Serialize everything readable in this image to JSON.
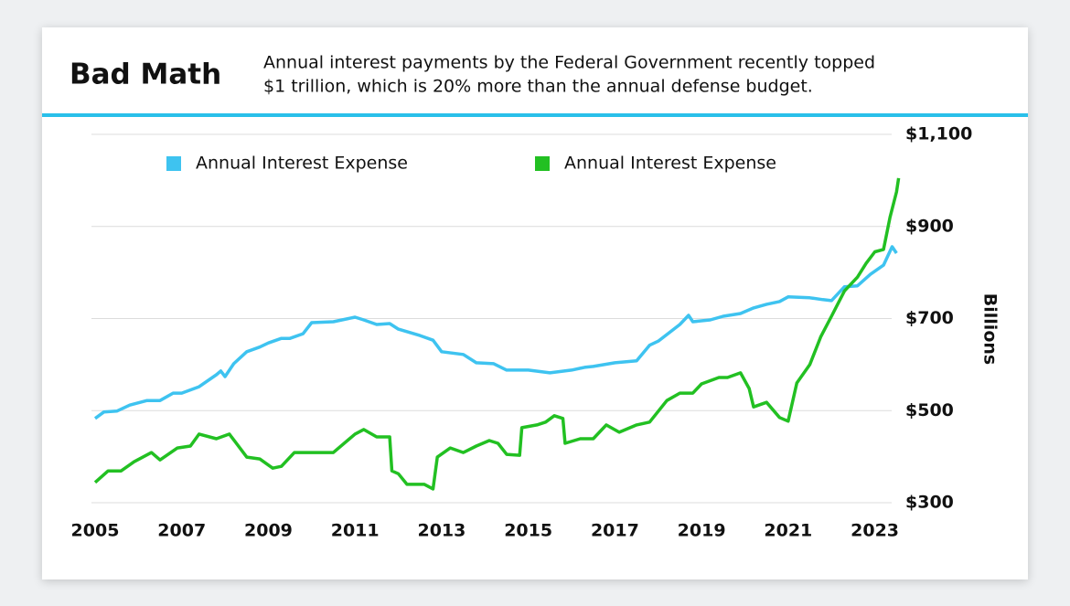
{
  "chart_data": {
    "type": "line",
    "title": "Bad Math",
    "subtitle": [
      "Annual interest payments by the Federal Government recently topped",
      "$1 trillion, which is 20% more than the annual defense budget."
    ],
    "y_label": "Billions",
    "xlim": [
      2005,
      2023.6
    ],
    "ylim": [
      300,
      1100
    ],
    "xticks": [
      2005,
      2007,
      2009,
      2011,
      2013,
      2015,
      2017,
      2019,
      2021,
      2023
    ],
    "yticks": [
      {
        "value": 300,
        "label": "$300"
      },
      {
        "value": 500,
        "label": "$500"
      },
      {
        "value": 700,
        "label": "$700"
      },
      {
        "value": 900,
        "label": "$900"
      },
      {
        "value": 1100,
        "label": "$1,100"
      }
    ],
    "grid": true,
    "series": [
      {
        "name": "Annual Interest Expense",
        "color": "#3ec3f0",
        "x": [
          2005.0,
          2005.2,
          2005.5,
          2005.8,
          2006.2,
          2006.5,
          2006.8,
          2007.0,
          2007.4,
          2007.8,
          2007.9,
          2008.0,
          2008.2,
          2008.5,
          2008.8,
          2009.0,
          2009.3,
          2009.5,
          2009.8,
          2010.0,
          2010.5,
          2011.0,
          2011.2,
          2011.5,
          2011.8,
          2012.0,
          2012.5,
          2012.8,
          2013.0,
          2013.5,
          2013.8,
          2014.2,
          2014.5,
          2015.0,
          2015.5,
          2016.0,
          2016.3,
          2016.5,
          2017.0,
          2017.5,
          2017.8,
          2018.0,
          2018.5,
          2018.7,
          2018.8,
          2019.2,
          2019.5,
          2019.9,
          2020.2,
          2020.5,
          2020.8,
          2021.0,
          2021.5,
          2021.8,
          2022.0,
          2022.3,
          2022.6,
          2022.9,
          2023.2,
          2023.4,
          2023.5
        ],
        "values": [
          483,
          497,
          499,
          512,
          522,
          522,
          538,
          538,
          552,
          578,
          586,
          574,
          602,
          628,
          638,
          647,
          657,
          657,
          667,
          691,
          693,
          703,
          697,
          687,
          689,
          677,
          663,
          653,
          628,
          622,
          604,
          602,
          588,
          588,
          582,
          588,
          594,
          596,
          604,
          608,
          642,
          651,
          687,
          707,
          693,
          697,
          705,
          711,
          723,
          731,
          737,
          747,
          745,
          741,
          739,
          769,
          771,
          796,
          816,
          856,
          842
        ]
      },
      {
        "name": "Annual Interest Expense",
        "color": "#22c022",
        "x": [
          2005.0,
          2005.3,
          2005.6,
          2005.9,
          2006.3,
          2006.5,
          2006.9,
          2007.2,
          2007.4,
          2007.8,
          2008.1,
          2008.5,
          2008.8,
          2009.1,
          2009.3,
          2009.6,
          2010.5,
          2011.0,
          2011.2,
          2011.5,
          2011.8,
          2011.85,
          2012.0,
          2012.2,
          2012.6,
          2012.8,
          2012.9,
          2013.2,
          2013.5,
          2013.8,
          2014.1,
          2014.3,
          2014.5,
          2014.8,
          2014.85,
          2015.2,
          2015.4,
          2015.6,
          2015.8,
          2015.85,
          2016.2,
          2016.5,
          2016.8,
          2017.1,
          2017.5,
          2017.8,
          2018.2,
          2018.5,
          2018.8,
          2019.0,
          2019.4,
          2019.6,
          2019.9,
          2020.1,
          2020.2,
          2020.5,
          2020.8,
          2021.0,
          2021.2,
          2021.5,
          2021.75,
          2022.0,
          2022.3,
          2022.6,
          2022.8,
          2023.0,
          2023.2,
          2023.35,
          2023.5,
          2023.55
        ],
        "values": [
          344,
          369,
          369,
          389,
          409,
          393,
          419,
          423,
          449,
          439,
          449,
          399,
          395,
          375,
          379,
          409,
          409,
          449,
          459,
          443,
          443,
          369,
          363,
          340,
          340,
          330,
          399,
          419,
          409,
          423,
          435,
          429,
          405,
          403,
          463,
          469,
          475,
          489,
          483,
          429,
          439,
          439,
          469,
          453,
          469,
          475,
          522,
          538,
          538,
          558,
          572,
          572,
          582,
          548,
          508,
          518,
          485,
          477,
          560,
          600,
          660,
          705,
          760,
          790,
          820,
          845,
          850,
          920,
          975,
          1005
        ]
      }
    ]
  }
}
